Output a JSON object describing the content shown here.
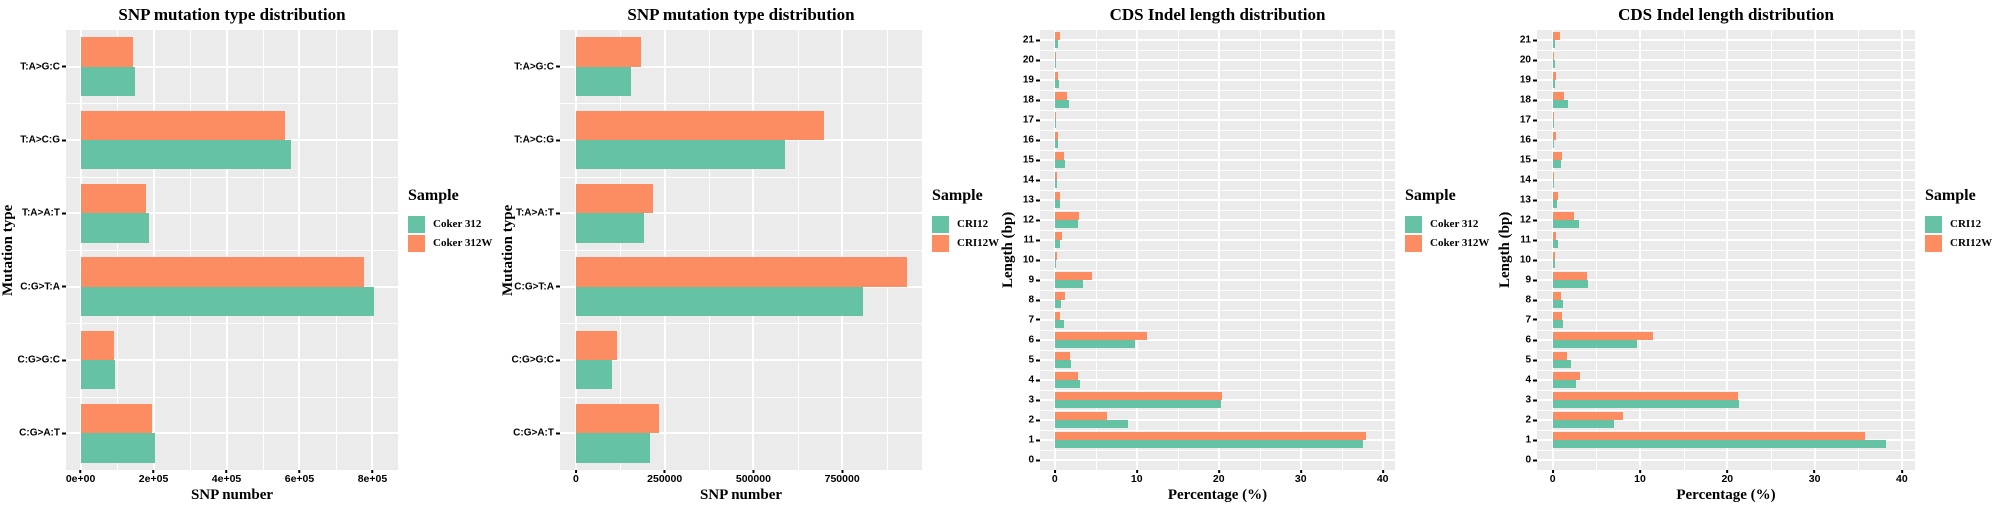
{
  "colors": {
    "series_green": "#66C2A5",
    "series_orange": "#FC8D62",
    "panel_background": "#EBEBEB",
    "gridline": "#FFFFFF",
    "text": "#000000"
  },
  "chart_data": [
    {
      "type": "bar",
      "orientation": "horizontal",
      "title": "SNP mutation type distribution",
      "xlabel": "SNP number",
      "ylabel": "Mutation type",
      "legend_title": "Sample",
      "legend_position": "right",
      "grid": true,
      "bar_fraction": 0.4,
      "categories": [
        "T:A>G:C",
        "T:A>C:G",
        "T:A>A:T",
        "C:G>T:A",
        "C:G>G:C",
        "C:G>A:T"
      ],
      "series": [
        {
          "name": "Coker 312",
          "color": "#66C2A5",
          "values": [
            150000,
            578000,
            188000,
            805000,
            94000,
            204000
          ]
        },
        {
          "name": "Coker 312W",
          "color": "#FC8D62",
          "values": [
            145000,
            560000,
            180000,
            778000,
            92000,
            196000
          ]
        }
      ],
      "xlim": [
        -40000,
        870000
      ],
      "xticks": [
        {
          "value": 0,
          "label": "0e+00"
        },
        {
          "value": 200000,
          "label": "2e+05"
        },
        {
          "value": 400000,
          "label": "4e+05"
        },
        {
          "value": 600000,
          "label": "6e+05"
        },
        {
          "value": 800000,
          "label": "8e+05"
        }
      ],
      "xminor": [
        100000,
        300000,
        500000,
        700000
      ]
    },
    {
      "type": "bar",
      "orientation": "horizontal",
      "title": "SNP mutation type distribution",
      "xlabel": "SNP number",
      "ylabel": "Mutation type",
      "legend_title": "Sample",
      "legend_position": "right",
      "grid": true,
      "bar_fraction": 0.4,
      "categories": [
        "T:A>G:C",
        "T:A>C:G",
        "T:A>A:T",
        "C:G>T:A",
        "C:G>G:C",
        "C:G>A:T"
      ],
      "series": [
        {
          "name": "CRI12",
          "color": "#66C2A5",
          "values": [
            156000,
            590000,
            191000,
            810000,
            101000,
            208000
          ]
        },
        {
          "name": "CRI12W",
          "color": "#FC8D62",
          "values": [
            183000,
            700000,
            217000,
            934000,
            116000,
            234000
          ]
        }
      ],
      "xlim": [
        -45000,
        975000
      ],
      "xticks": [
        {
          "value": 0,
          "label": "0"
        },
        {
          "value": 250000,
          "label": "250000"
        },
        {
          "value": 500000,
          "label": "500000"
        },
        {
          "value": 750000,
          "label": "750000"
        }
      ],
      "xminor": [
        125000,
        375000,
        625000,
        875000
      ]
    },
    {
      "type": "bar",
      "orientation": "horizontal",
      "title": "CDS Indel length distribution",
      "xlabel": "Percentage (%)",
      "ylabel": "Length (bp)",
      "legend_title": "Sample",
      "legend_position": "right",
      "grid": true,
      "bar_fraction": 0.42,
      "categories": [
        "21",
        "20",
        "19",
        "18",
        "17",
        "16",
        "15",
        "14",
        "13",
        "12",
        "11",
        "10",
        "9",
        "8",
        "7",
        "6",
        "5",
        "4",
        "3",
        "2",
        "1",
        "0"
      ],
      "series": [
        {
          "name": "Coker 312",
          "color": "#66C2A5",
          "values": [
            0.4,
            0.2,
            0.55,
            1.75,
            0.2,
            0.45,
            1.25,
            0.27,
            0.7,
            2.8,
            0.7,
            0.1,
            3.5,
            0.8,
            1.1,
            9.8,
            2.0,
            3.1,
            20.3,
            8.9,
            37.6,
            0
          ]
        },
        {
          "name": "Coker 312W",
          "color": "#FC8D62",
          "values": [
            0.6,
            0.15,
            0.4,
            1.5,
            0.15,
            0.4,
            1.1,
            0.3,
            0.6,
            3.0,
            0.85,
            0.25,
            4.6,
            1.3,
            0.7,
            11.3,
            1.9,
            2.8,
            20.4,
            6.4,
            38.0,
            0
          ]
        }
      ],
      "xlim": [
        -1.8,
        41.5
      ],
      "xticks": [
        {
          "value": 0,
          "label": "0"
        },
        {
          "value": 10,
          "label": "10"
        },
        {
          "value": 20,
          "label": "20"
        },
        {
          "value": 30,
          "label": "30"
        },
        {
          "value": 40,
          "label": "40"
        }
      ],
      "xminor": [
        5,
        15,
        25,
        35
      ]
    },
    {
      "type": "bar",
      "orientation": "horizontal",
      "title": "CDS Indel length distribution",
      "xlabel": "Percentage (%)",
      "ylabel": "Length (bp)",
      "legend_title": "Sample",
      "legend_position": "right",
      "grid": true,
      "bar_fraction": 0.42,
      "categories": [
        "21",
        "20",
        "19",
        "18",
        "17",
        "16",
        "15",
        "14",
        "13",
        "12",
        "11",
        "10",
        "9",
        "8",
        "7",
        "6",
        "5",
        "4",
        "3",
        "2",
        "1",
        "0"
      ],
      "series": [
        {
          "name": "CRI12",
          "color": "#66C2A5",
          "values": [
            0.26,
            0.23,
            0.3,
            1.8,
            0.1,
            0.2,
            1.0,
            0.2,
            0.5,
            3.05,
            0.55,
            0.3,
            4.0,
            1.2,
            1.2,
            9.6,
            2.1,
            2.7,
            21.3,
            7.0,
            38.2,
            0
          ]
        },
        {
          "name": "CRI12W",
          "color": "#FC8D62",
          "values": [
            0.8,
            0.1,
            0.38,
            1.24,
            0.15,
            0.4,
            1.05,
            0.12,
            0.55,
            2.45,
            0.35,
            0.3,
            3.9,
            0.9,
            1.1,
            11.5,
            1.6,
            3.1,
            21.2,
            8.1,
            35.8,
            0
          ]
        }
      ],
      "xlim": [
        -1.8,
        41.5
      ],
      "xticks": [
        {
          "value": 0,
          "label": "0"
        },
        {
          "value": 10,
          "label": "10"
        },
        {
          "value": 20,
          "label": "20"
        },
        {
          "value": 30,
          "label": "30"
        },
        {
          "value": 40,
          "label": "40"
        }
      ],
      "xminor": [
        5,
        15,
        25,
        35
      ]
    }
  ]
}
